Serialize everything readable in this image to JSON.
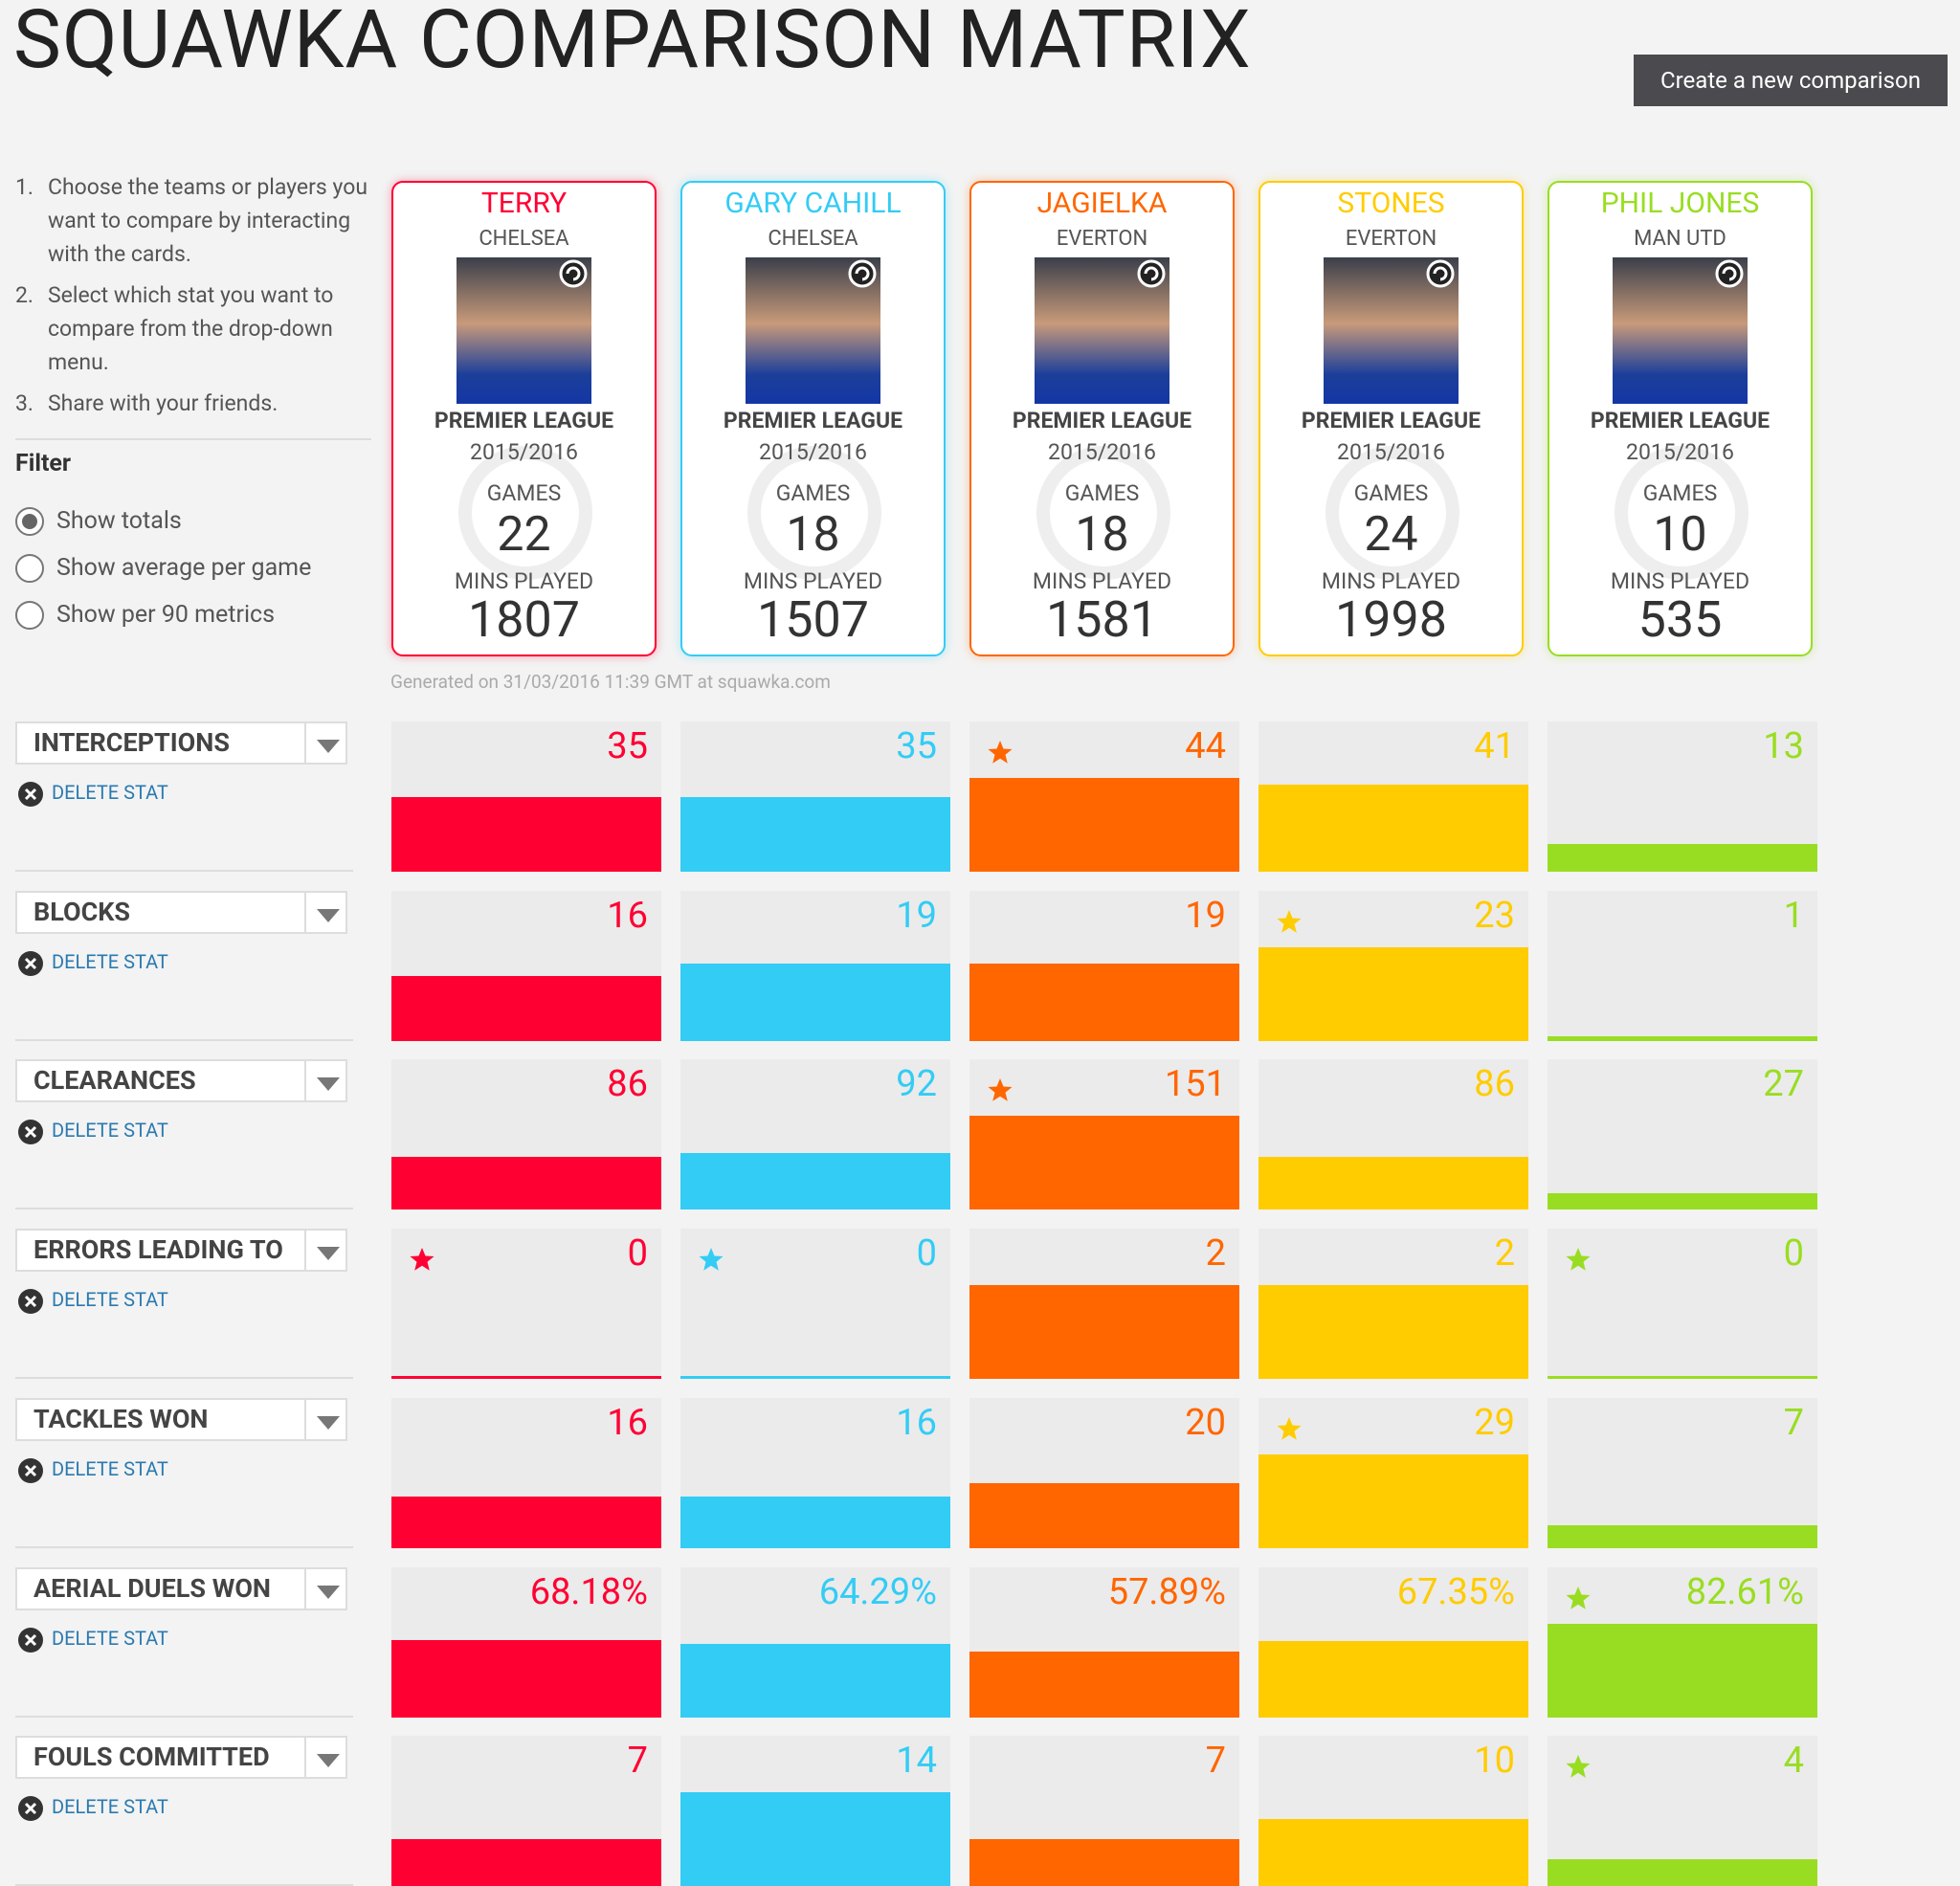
{
  "header": {
    "title": "SQUAWKA COMPARISON MATRIX",
    "button": "Create a new comparison"
  },
  "instructions": [
    {
      "number": "1.",
      "text": "Choose the teams or players you want to compare by interacting with the cards."
    },
    {
      "number": "2.",
      "text": "Select which stat you want to compare from the drop-down menu."
    },
    {
      "number": "3.",
      "text": "Share with your friends."
    }
  ],
  "filter": {
    "title": "Filter",
    "options": [
      "Show totals",
      "Show average per game",
      "Show per 90 metrics"
    ],
    "selected": 0
  },
  "players": [
    {
      "name": "TERRY",
      "team": "CHELSEA",
      "league": "PREMIER LEAGUE",
      "season": "2015/2016",
      "games_label": "GAMES",
      "games": 22,
      "mins_label": "MINS PLAYED",
      "mins": 1807,
      "color": "#ff0033"
    },
    {
      "name": "GARY CAHILL",
      "team": "CHELSEA",
      "league": "PREMIER LEAGUE",
      "season": "2015/2016",
      "games_label": "GAMES",
      "games": 18,
      "mins_label": "MINS PLAYED",
      "mins": 1507,
      "color": "#33ccf5"
    },
    {
      "name": "JAGIELKA",
      "team": "EVERTON",
      "league": "PREMIER LEAGUE",
      "season": "2015/2016",
      "games_label": "GAMES",
      "games": 18,
      "mins_label": "MINS PLAYED",
      "mins": 1581,
      "color": "#ff6600"
    },
    {
      "name": "STONES",
      "team": "EVERTON",
      "league": "PREMIER LEAGUE",
      "season": "2015/2016",
      "games_label": "GAMES",
      "games": 24,
      "mins_label": "MINS PLAYED",
      "mins": 1998,
      "color": "#ffcc00"
    },
    {
      "name": "PHIL JONES",
      "team": "MAN UTD",
      "league": "PREMIER LEAGUE",
      "season": "2015/2016",
      "games_label": "GAMES",
      "games": 10,
      "mins_label": "MINS PLAYED",
      "mins": 535,
      "color": "#99dd22"
    }
  ],
  "generated": "Generated on 31/03/2016 11:39 GMT at squawka.com",
  "stats": [
    {
      "name": "INTERCEPTIONS",
      "delete": "DELETE STAT",
      "values": [
        35,
        35,
        44,
        41,
        13
      ],
      "starred": [
        false,
        false,
        true,
        false,
        false
      ]
    },
    {
      "name": "BLOCKS",
      "delete": "DELETE STAT",
      "values": [
        16,
        19,
        19,
        23,
        1
      ],
      "starred": [
        false,
        false,
        false,
        true,
        false
      ]
    },
    {
      "name": "CLEARANCES",
      "delete": "DELETE STAT",
      "values": [
        86,
        92,
        151,
        86,
        27
      ],
      "starred": [
        false,
        false,
        true,
        false,
        false
      ]
    },
    {
      "name": "ERRORS LEADING TO",
      "delete": "DELETE STAT",
      "values": [
        0,
        0,
        2,
        2,
        0
      ],
      "starred": [
        true,
        true,
        false,
        false,
        true
      ]
    },
    {
      "name": "TACKLES WON",
      "delete": "DELETE STAT",
      "values": [
        16,
        16,
        20,
        29,
        7
      ],
      "starred": [
        false,
        false,
        false,
        true,
        false
      ]
    },
    {
      "name": "AERIAL DUELS WON",
      "delete": "DELETE STAT",
      "values": [
        68.18,
        64.29,
        57.89,
        67.35,
        82.61
      ],
      "value_labels": [
        "68.18%",
        "64.29%",
        "57.89%",
        "67.35%",
        "82.61%"
      ],
      "starred": [
        false,
        false,
        false,
        false,
        true
      ]
    },
    {
      "name": "FOULS COMMITTED",
      "delete": "DELETE STAT",
      "values": [
        7,
        14,
        7,
        10,
        4
      ],
      "starred": [
        false,
        false,
        false,
        false,
        true
      ]
    }
  ]
}
